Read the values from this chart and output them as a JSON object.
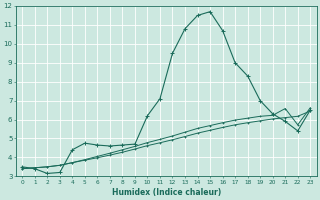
{
  "xlabel": "Humidex (Indice chaleur)",
  "bg_color": "#cce8e0",
  "grid_color": "#ffffff",
  "line_color": "#1a6b5a",
  "xlim": [
    -0.5,
    23.5
  ],
  "ylim": [
    3,
    12
  ],
  "xticks": [
    0,
    1,
    2,
    3,
    4,
    5,
    6,
    7,
    8,
    9,
    10,
    11,
    12,
    13,
    14,
    15,
    16,
    17,
    18,
    19,
    20,
    21,
    22,
    23
  ],
  "yticks": [
    3,
    4,
    5,
    6,
    7,
    8,
    9,
    10,
    11,
    12
  ],
  "series1_x": [
    0,
    1,
    2,
    3,
    4,
    5,
    6,
    7,
    8,
    9,
    10,
    11,
    12,
    13,
    14,
    15,
    16,
    17,
    18,
    19,
    20,
    21,
    22,
    23
  ],
  "series1_y": [
    3.5,
    3.4,
    3.15,
    3.2,
    4.4,
    4.75,
    4.65,
    4.6,
    4.65,
    4.7,
    6.2,
    7.1,
    9.5,
    10.8,
    11.5,
    11.7,
    10.7,
    9.0,
    8.3,
    7.0,
    6.3,
    5.9,
    5.4,
    6.5
  ],
  "series2_x": [
    0,
    1,
    2,
    3,
    4,
    5,
    6,
    7,
    8,
    9,
    10,
    11,
    12,
    13,
    14,
    15,
    16,
    17,
    18,
    19,
    20,
    21,
    22,
    23
  ],
  "series2_y": [
    3.4,
    3.45,
    3.5,
    3.58,
    3.72,
    3.85,
    3.98,
    4.12,
    4.27,
    4.44,
    4.62,
    4.77,
    4.93,
    5.1,
    5.28,
    5.43,
    5.58,
    5.72,
    5.83,
    5.93,
    6.03,
    6.1,
    6.17,
    6.45
  ],
  "series3_x": [
    0,
    1,
    2,
    3,
    4,
    5,
    6,
    7,
    8,
    9,
    10,
    11,
    12,
    13,
    14,
    15,
    16,
    17,
    18,
    19,
    20,
    21,
    22,
    23
  ],
  "series3_y": [
    3.4,
    3.45,
    3.5,
    3.58,
    3.72,
    3.88,
    4.05,
    4.22,
    4.4,
    4.58,
    4.78,
    4.95,
    5.13,
    5.33,
    5.53,
    5.68,
    5.83,
    5.97,
    6.07,
    6.17,
    6.22,
    6.58,
    5.72,
    6.62
  ]
}
